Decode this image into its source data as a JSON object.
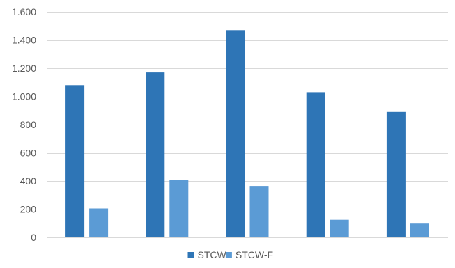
{
  "chart_data": {
    "type": "bar",
    "categories": [
      "",
      "",
      "",
      "",
      ""
    ],
    "series": [
      {
        "name": "STCW",
        "values": [
          1080,
          1170,
          1470,
          1030,
          890
        ],
        "color": "#2E75B6"
      },
      {
        "name": "STCW-F",
        "values": [
          205,
          410,
          365,
          125,
          98
        ],
        "color": "#5B9BD5"
      }
    ],
    "yticks": [
      0,
      200,
      400,
      600,
      800,
      1000,
      1200,
      1400,
      1600
    ],
    "ytick_labels": [
      "0",
      "200",
      "400",
      "600",
      "800",
      "1.000",
      "1.200",
      "1.400",
      "1.600"
    ],
    "ylim": [
      0,
      1600
    ],
    "title": "",
    "xlabel": "",
    "ylabel": "",
    "grid": true,
    "gridline_color": "#D9D9D9",
    "legend_position": "bottom-center"
  }
}
